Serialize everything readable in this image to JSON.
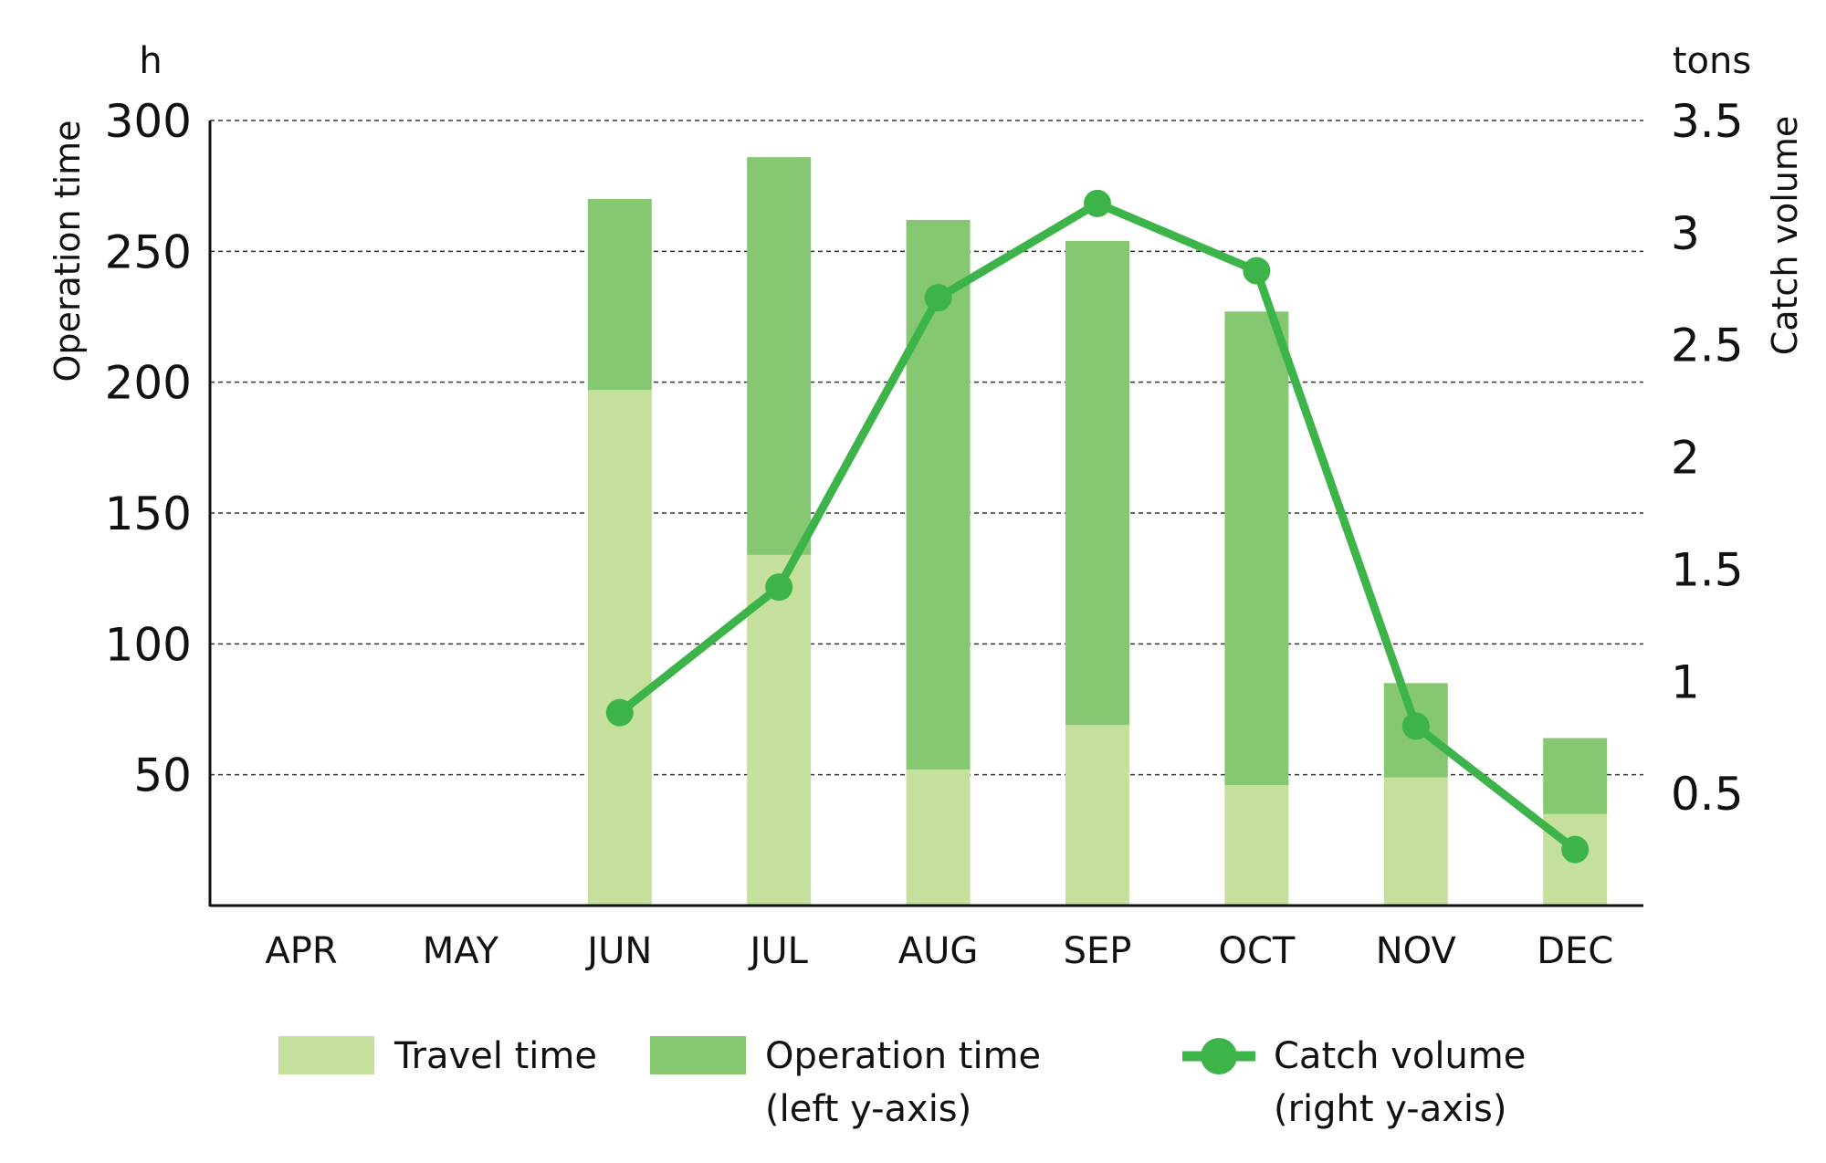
{
  "chart_data": {
    "type": "bar",
    "categories": [
      "APR",
      "MAY",
      "JUN",
      "JUL",
      "AUG",
      "SEP",
      "OCT",
      "NOV",
      "DEC"
    ],
    "series": [
      {
        "name": "Travel time",
        "type": "bar",
        "stack": "time",
        "axis": "left",
        "color": "#c5e09d",
        "values": [
          0,
          0,
          197,
          134,
          52,
          69,
          46,
          49,
          35
        ]
      },
      {
        "name": "Operation time",
        "type": "bar",
        "stack": "time",
        "axis": "left",
        "color": "#86c771",
        "values": [
          0,
          0,
          73,
          152,
          210,
          185,
          181,
          36,
          29
        ]
      },
      {
        "name": "Catch volume",
        "type": "line",
        "axis": "right",
        "color": "#3cb44a",
        "values": [
          null,
          null,
          0.86,
          1.42,
          2.71,
          3.13,
          2.83,
          0.8,
          0.25
        ]
      }
    ],
    "y_left": {
      "unit": "h",
      "label": "Operation time",
      "ticks": [
        50,
        100,
        150,
        200,
        250,
        300
      ],
      "ylim": [
        0,
        300
      ]
    },
    "y_right": {
      "unit": "tons",
      "label": "Catch volume",
      "ticks": [
        "0.5",
        "1",
        "1.5",
        "2",
        "2.5",
        "3",
        "3.5"
      ],
      "ylim": [
        0,
        3.5
      ]
    },
    "grid": true,
    "legend": {
      "position": "bottom",
      "items": [
        {
          "line1": "Travel time",
          "line2": ""
        },
        {
          "line1": "Operation time",
          "line2": "(left y-axis)"
        },
        {
          "line1": "Catch volume",
          "line2": "(right y-axis)"
        }
      ]
    }
  }
}
